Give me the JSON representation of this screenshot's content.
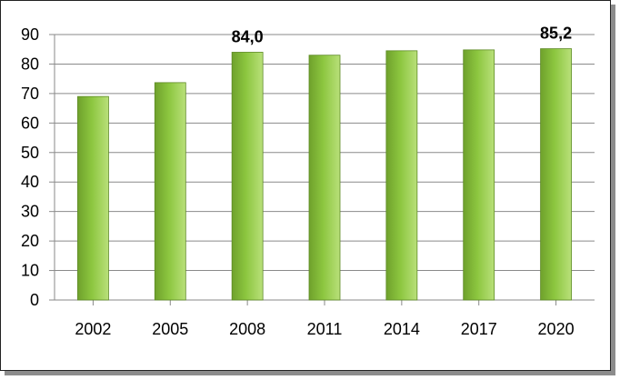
{
  "chart_data": {
    "type": "bar",
    "categories": [
      "2002",
      "2005",
      "2008",
      "2011",
      "2014",
      "2017",
      "2020"
    ],
    "values": [
      69.0,
      73.7,
      84.0,
      83.0,
      84.5,
      84.8,
      85.2
    ],
    "data_labels": [
      "",
      "",
      "84,0",
      "",
      "",
      "",
      "85,2"
    ],
    "ylim": [
      0,
      90
    ],
    "yticks": [
      0,
      10,
      20,
      30,
      40,
      50,
      60,
      70,
      80,
      90
    ],
    "grid": true,
    "legend": "none",
    "bar_colors": {
      "dark": "#6fa12c",
      "mid": "#8cc63f",
      "light": "#b9e07a"
    },
    "title": "",
    "xlabel": "",
    "ylabel": ""
  }
}
